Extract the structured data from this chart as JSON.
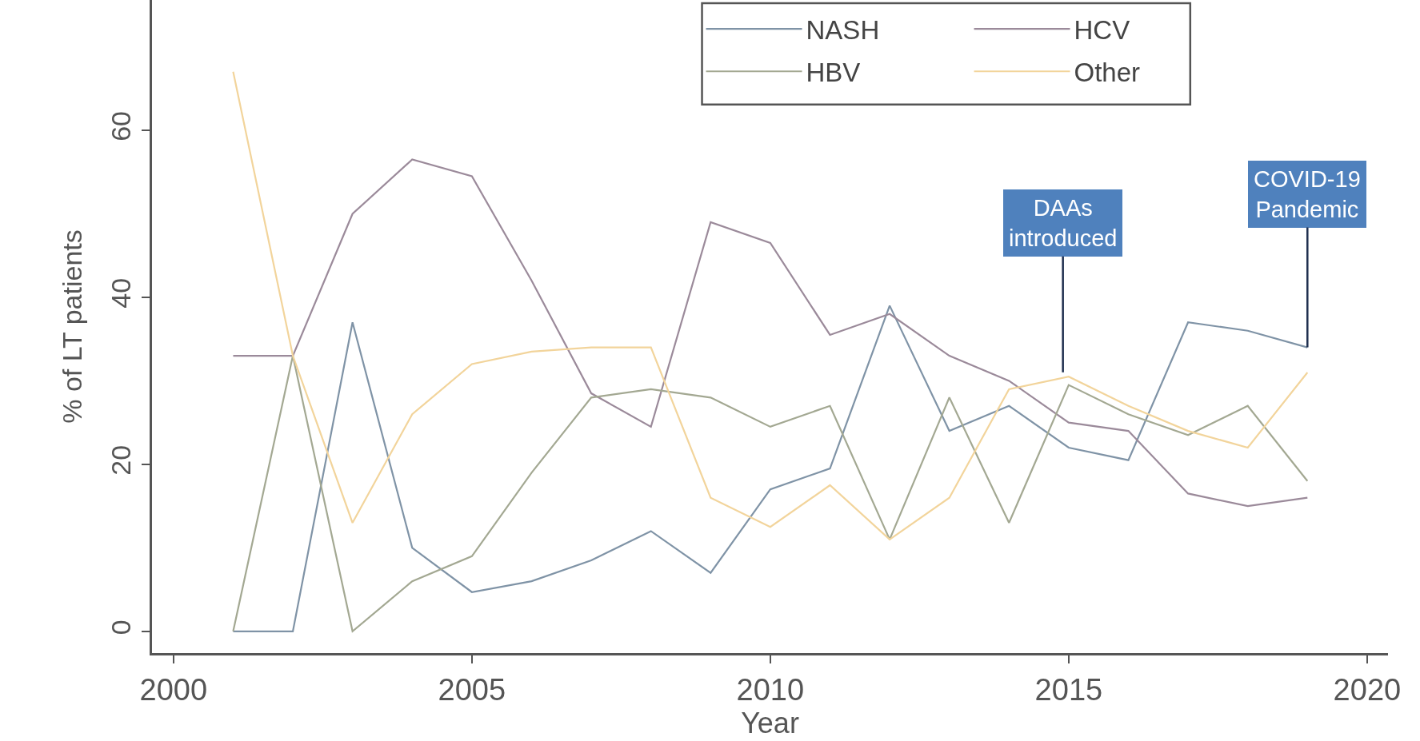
{
  "chart_data": {
    "type": "line",
    "xlabel": "Year",
    "ylabel": "% of LT patients",
    "x": [
      2001,
      2002,
      2003,
      2004,
      2005,
      2006,
      2007,
      2008,
      2009,
      2010,
      2011,
      2012,
      2013,
      2014,
      2015,
      2016,
      2017,
      2018,
      2019
    ],
    "series": [
      {
        "name": "NASH",
        "color": "#7f93a6",
        "values": [
          0,
          0,
          37,
          10,
          4.7,
          6,
          8.5,
          12,
          7,
          17,
          19.5,
          39,
          24,
          27,
          22,
          20.5,
          37,
          36,
          34
        ]
      },
      {
        "name": "HCV",
        "color": "#9b8a9a",
        "values": [
          33,
          33,
          50,
          56.5,
          54.5,
          42,
          28.5,
          24.5,
          49,
          46.5,
          35.5,
          38,
          33,
          30,
          25,
          24,
          16.5,
          15,
          16
        ]
      },
      {
        "name": "HBV",
        "color": "#a3a892",
        "values": [
          0,
          33,
          0,
          6,
          9,
          19,
          28,
          29,
          28,
          24.5,
          27,
          11,
          28,
          13,
          29.5,
          26,
          23.5,
          27,
          18
        ]
      },
      {
        "name": "Other",
        "color": "#f2d49b",
        "values": [
          67,
          33,
          13,
          26,
          32,
          33.5,
          34,
          34,
          16,
          12.5,
          17.5,
          11,
          16,
          29,
          30.5,
          27,
          24,
          22,
          31
        ]
      }
    ],
    "xlim": [
      1999.64,
      2020.35
    ],
    "xticks": [
      2000,
      2005,
      2010,
      2015,
      2020
    ],
    "ylim": [
      -2.6,
      75.6
    ],
    "yticks": [
      0,
      20,
      40,
      60
    ],
    "grid": false,
    "legend": "top right",
    "line_style": "solid",
    "marker": "none",
    "annotations": [
      "DAAs\nintroduced",
      {
        "text": "COVID-19\nPandemic",
        "x": 2019,
        "y": 34
      }
    ]
  }
}
